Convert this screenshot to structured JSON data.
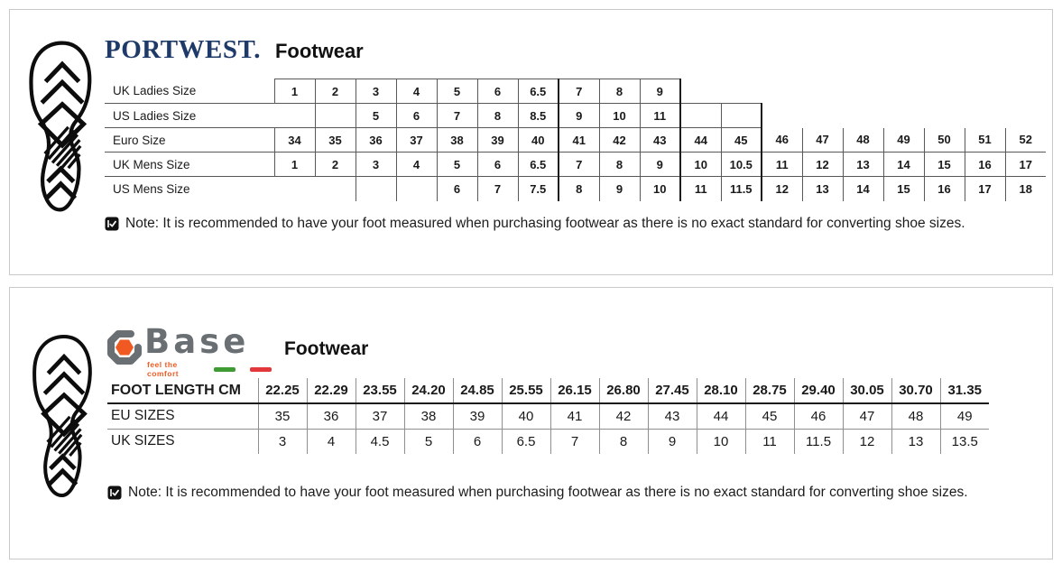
{
  "page": {
    "background": "#ffffff",
    "panel_border": "#c9c9c9"
  },
  "portwest_panel": {
    "brand": "PORTWEST.",
    "brand_color": "#1e3a68",
    "heading": "Footwear",
    "icon": "boot-sole-print",
    "note": "Note: It is recommended to have your foot measured when purchasing footwear as there is no exact standard for converting shoe sizes.",
    "table": {
      "columns": 19,
      "rows": [
        {
          "label": "UK Ladies Size",
          "values": [
            "1",
            "2",
            "3",
            "4",
            "5",
            "6",
            "6.5",
            "7",
            "8",
            "9"
          ]
        },
        {
          "label": "US Ladies Size",
          "values": [
            "",
            "",
            "5",
            "6",
            "7",
            "8",
            "8.5",
            "9",
            "10",
            "11",
            "",
            ""
          ]
        },
        {
          "label": "Euro Size",
          "values": [
            "34",
            "35",
            "36",
            "37",
            "38",
            "39",
            "40",
            "41",
            "42",
            "43",
            "44",
            "45",
            "46",
            "47",
            "48",
            "49",
            "50",
            "51",
            "52"
          ]
        },
        {
          "label": "UK Mens Size",
          "values": [
            "1",
            "2",
            "3",
            "4",
            "5",
            "6",
            "6.5",
            "7",
            "8",
            "9",
            "10",
            "10.5",
            "11",
            "12",
            "13",
            "14",
            "15",
            "16",
            "17"
          ]
        },
        {
          "label": "US Mens Size",
          "values": [
            "",
            "",
            "",
            "",
            "6",
            "7",
            "7.5",
            "8",
            "9",
            "10",
            "11",
            "11.5",
            "12",
            "13",
            "14",
            "15",
            "16",
            "17",
            "18"
          ]
        }
      ]
    }
  },
  "base_panel": {
    "brand": "Base",
    "tagline": "feel the comfort",
    "heading": "Footwear",
    "icon": "boot-sole-print",
    "brand_gray": "#6a6f73",
    "brand_orange": "#f05a22",
    "flag_green": "#3f9c35",
    "flag_red": "#e2373b",
    "note": "Note: It is recommended to have your foot measured when purchasing footwear as there is no exact standard for converting shoe sizes.",
    "table": {
      "rows": [
        {
          "label": "FOOT LENGTH CM",
          "bold": true,
          "values": [
            "22.25",
            "22.29",
            "23.55",
            "24.20",
            "24.85",
            "25.55",
            "26.15",
            "26.80",
            "27.45",
            "28.10",
            "28.75",
            "29.40",
            "30.05",
            "30.70",
            "31.35"
          ]
        },
        {
          "label": "EU SIZES",
          "values": [
            "35",
            "36",
            "37",
            "38",
            "39",
            "40",
            "41",
            "42",
            "43",
            "44",
            "45",
            "46",
            "47",
            "48",
            "49"
          ]
        },
        {
          "label": "UK SIZES",
          "values": [
            "3",
            "4",
            "4.5",
            "5",
            "6",
            "6.5",
            "7",
            "8",
            "9",
            "10",
            "11",
            "11.5",
            "12",
            "13",
            "13.5"
          ]
        }
      ]
    }
  }
}
